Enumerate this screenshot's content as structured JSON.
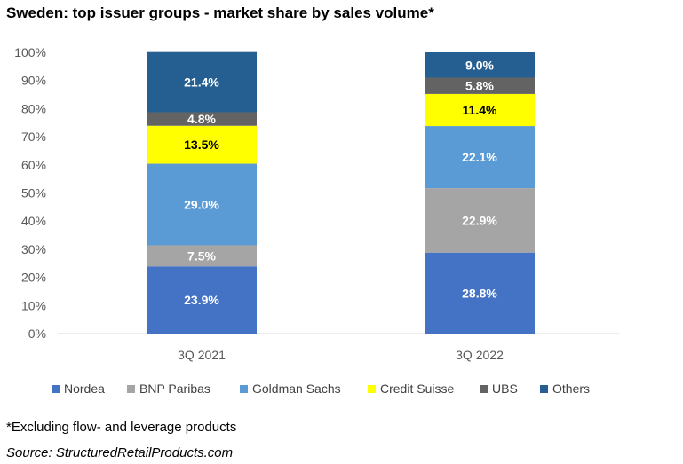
{
  "title": "Sweden: top issuer groups - market share by sales volume*",
  "footnote": "*Excluding flow- and leverage products",
  "source": "Source: StructuredRetailProducts.com",
  "chart_data": {
    "type": "bar",
    "stacked": true,
    "categories": [
      "3Q 2021",
      "3Q 2022"
    ],
    "ylim": [
      0,
      100
    ],
    "yticks": [
      "0%",
      "10%",
      "20%",
      "30%",
      "40%",
      "50%",
      "60%",
      "70%",
      "80%",
      "90%",
      "100%"
    ],
    "grid": false,
    "legend_position": "bottom",
    "series": [
      {
        "name": "Nordea",
        "color": "#4472C4",
        "values": [
          23.9,
          28.8
        ],
        "labels": [
          "23.9%",
          "28.8%"
        ],
        "label_color": "#ffffff"
      },
      {
        "name": "BNP Paribas",
        "color": "#A5A5A5",
        "values": [
          7.5,
          22.9
        ],
        "labels": [
          "7.5%",
          "22.9%"
        ],
        "label_color": "#ffffff"
      },
      {
        "name": "Goldman Sachs",
        "color": "#5B9BD5",
        "values": [
          29.0,
          22.1
        ],
        "labels": [
          "29.0%",
          "22.1%"
        ],
        "label_color": "#ffffff"
      },
      {
        "name": "Credit Suisse",
        "color": "#FFFF00",
        "values": [
          13.5,
          11.4
        ],
        "labels": [
          "13.5%",
          "11.4%"
        ],
        "label_color": "#000000"
      },
      {
        "name": "UBS",
        "color": "#636363",
        "values": [
          4.8,
          5.8
        ],
        "labels": [
          "4.8%",
          "5.8%"
        ],
        "label_color": "#ffffff"
      },
      {
        "name": "Others",
        "color": "#255E91",
        "values": [
          21.4,
          9.0
        ],
        "labels": [
          "21.4%",
          "9.0%"
        ],
        "label_color": "#ffffff"
      }
    ]
  }
}
